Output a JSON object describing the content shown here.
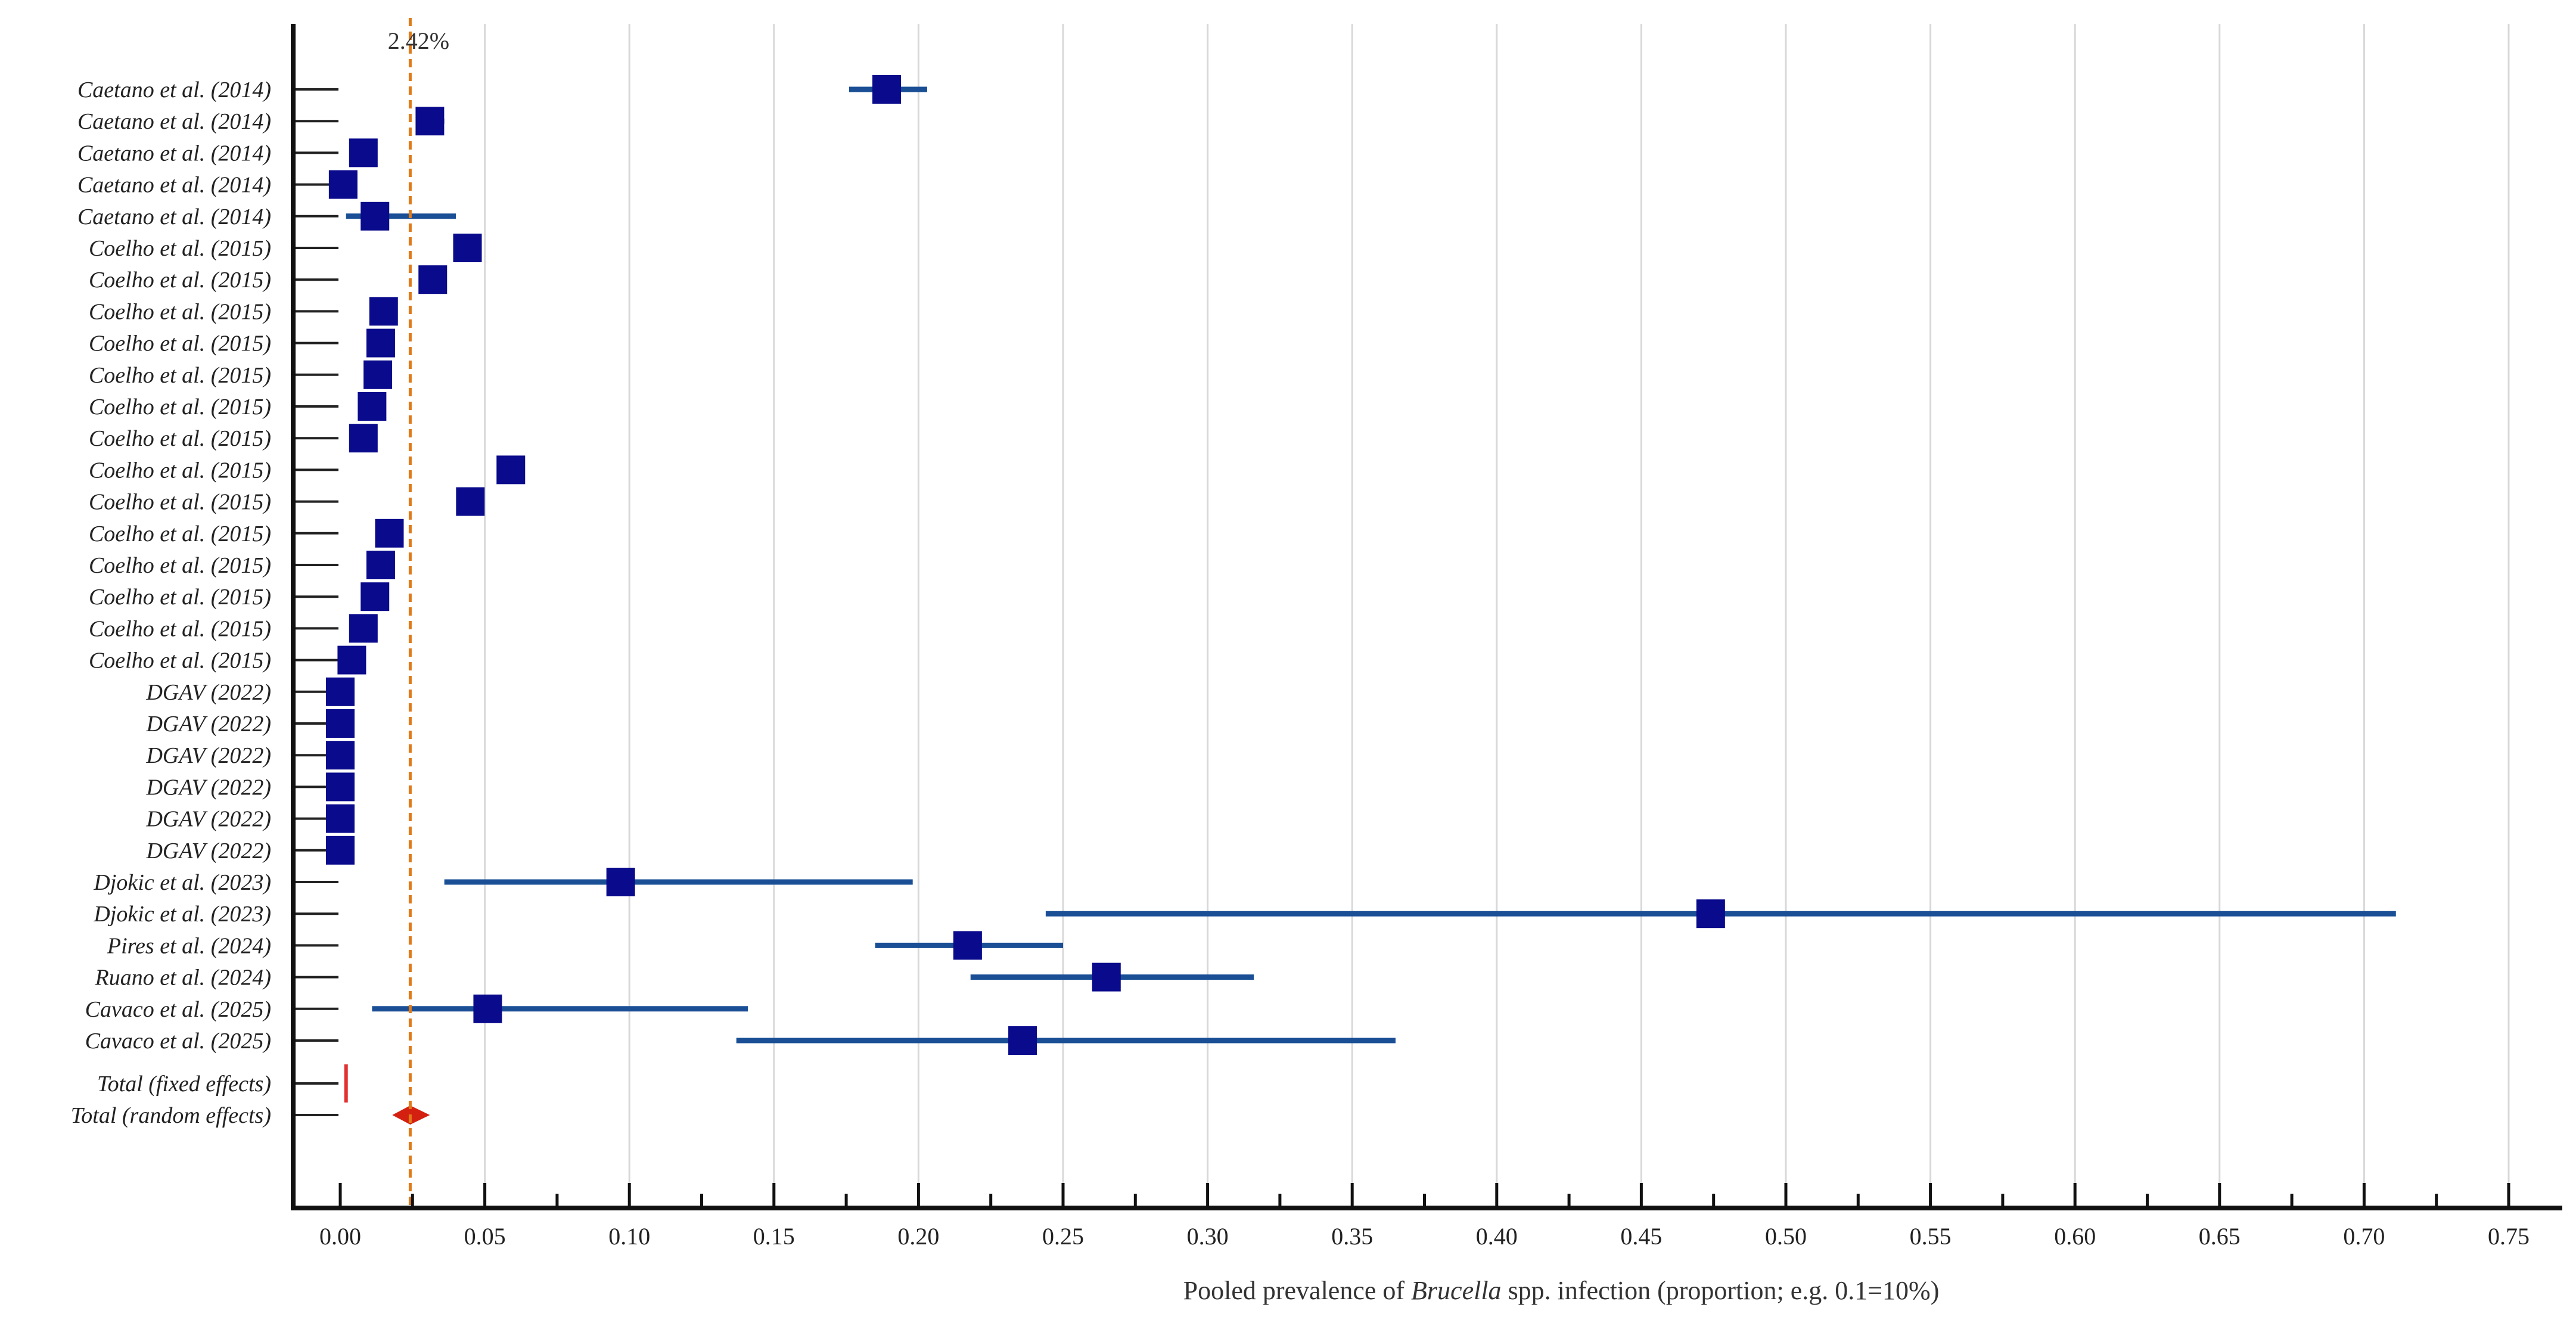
{
  "chart_data": {
    "type": "forest",
    "xlabel_parts": [
      {
        "text": "Pooled prevalence of ",
        "italic": false
      },
      {
        "text": "Brucella",
        "italic": true
      },
      {
        "text": " spp. infection (proportion; e.g. 0.1=10%)",
        "italic": false
      }
    ],
    "xlim": [
      0,
      0.75
    ],
    "x_ticks": [
      0.0,
      0.05,
      0.1,
      0.15,
      0.2,
      0.25,
      0.3,
      0.35,
      0.4,
      0.45,
      0.5,
      0.55,
      0.6,
      0.65,
      0.7,
      0.75
    ],
    "x_tick_labels": [
      "0.00",
      "0.05",
      "0.10",
      "0.15",
      "0.20",
      "0.25",
      "0.30",
      "0.35",
      "0.40",
      "0.45",
      "0.50",
      "0.55",
      "0.60",
      "0.65",
      "0.70",
      "0.75"
    ],
    "grid": true,
    "reference_line": {
      "value": 0.0242,
      "label": "2.42%"
    },
    "studies": [
      {
        "label": "Caetano et al. (2014)",
        "estimate": 0.189,
        "ci": [
          0.176,
          0.203
        ]
      },
      {
        "label": "Caetano et al. (2014)",
        "estimate": 0.031,
        "ci": [
          0.027,
          0.036
        ]
      },
      {
        "label": "Caetano et al. (2014)",
        "estimate": 0.008,
        "ci": [
          0.006,
          0.01
        ]
      },
      {
        "label": "Caetano et al. (2014)",
        "estimate": 0.001,
        "ci": [
          0.0,
          0.002
        ]
      },
      {
        "label": "Caetano et al. (2014)",
        "estimate": 0.012,
        "ci": [
          0.002,
          0.04
        ]
      },
      {
        "label": "Coelho et al. (2015)",
        "estimate": 0.044,
        "ci": [
          0.042,
          0.046
        ]
      },
      {
        "label": "Coelho et al. (2015)",
        "estimate": 0.032,
        "ci": [
          0.03,
          0.034
        ]
      },
      {
        "label": "Coelho et al. (2015)",
        "estimate": 0.015,
        "ci": [
          0.014,
          0.016
        ]
      },
      {
        "label": "Coelho et al. (2015)",
        "estimate": 0.014,
        "ci": [
          0.013,
          0.015
        ]
      },
      {
        "label": "Coelho et al. (2015)",
        "estimate": 0.013,
        "ci": [
          0.012,
          0.014
        ]
      },
      {
        "label": "Coelho et al. (2015)",
        "estimate": 0.011,
        "ci": [
          0.01,
          0.012
        ]
      },
      {
        "label": "Coelho et al. (2015)",
        "estimate": 0.008,
        "ci": [
          0.007,
          0.009
        ]
      },
      {
        "label": "Coelho et al. (2015)",
        "estimate": 0.059,
        "ci": [
          0.057,
          0.061
        ]
      },
      {
        "label": "Coelho et al. (2015)",
        "estimate": 0.045,
        "ci": [
          0.043,
          0.047
        ]
      },
      {
        "label": "Coelho et al. (2015)",
        "estimate": 0.017,
        "ci": [
          0.016,
          0.018
        ]
      },
      {
        "label": "Coelho et al. (2015)",
        "estimate": 0.014,
        "ci": [
          0.013,
          0.015
        ]
      },
      {
        "label": "Coelho et al. (2015)",
        "estimate": 0.012,
        "ci": [
          0.011,
          0.013
        ]
      },
      {
        "label": "Coelho et al. (2015)",
        "estimate": 0.008,
        "ci": [
          0.007,
          0.009
        ]
      },
      {
        "label": "Coelho et al. (2015)",
        "estimate": 0.004,
        "ci": [
          0.003,
          0.005
        ]
      },
      {
        "label": "DGAV (2022)",
        "estimate": 0.0,
        "ci": [
          0.0,
          0.001
        ]
      },
      {
        "label": "DGAV (2022)",
        "estimate": 0.0,
        "ci": [
          0.0,
          0.001
        ]
      },
      {
        "label": "DGAV (2022)",
        "estimate": 0.0,
        "ci": [
          0.0,
          0.001
        ]
      },
      {
        "label": "DGAV (2022)",
        "estimate": 0.0,
        "ci": [
          0.0,
          0.001
        ]
      },
      {
        "label": "DGAV (2022)",
        "estimate": 0.0,
        "ci": [
          0.0,
          0.001
        ]
      },
      {
        "label": "DGAV (2022)",
        "estimate": 0.0,
        "ci": [
          0.0,
          0.001
        ]
      },
      {
        "label": "Djokic et al. (2023)",
        "estimate": 0.097,
        "ci": [
          0.036,
          0.198
        ]
      },
      {
        "label": "Djokic et al. (2023)",
        "estimate": 0.474,
        "ci": [
          0.244,
          0.711
        ]
      },
      {
        "label": "Pires et al. (2024)",
        "estimate": 0.217,
        "ci": [
          0.185,
          0.25
        ]
      },
      {
        "label": "Ruano et al. (2024)",
        "estimate": 0.265,
        "ci": [
          0.218,
          0.316
        ]
      },
      {
        "label": "Cavaco et al. (2025)",
        "estimate": 0.051,
        "ci": [
          0.011,
          0.141
        ]
      },
      {
        "label": "Cavaco et al. (2025)",
        "estimate": 0.236,
        "ci": [
          0.137,
          0.365
        ]
      }
    ],
    "totals": [
      {
        "label": "Total (fixed effects)",
        "estimate": 0.002,
        "ci": [
          0.002,
          0.003
        ]
      },
      {
        "label": "Total (random effects)",
        "estimate": 0.0242,
        "ci": [
          0.018,
          0.031
        ]
      }
    ],
    "colors": {
      "marker": "#0a0a8c",
      "ci_line": "#1a4f96",
      "reference_line": "#e07b1a",
      "fixed_effect": "#e03030",
      "random_effect": "#d42010",
      "grid": "#d8d8d8",
      "axis": "#111111"
    }
  }
}
